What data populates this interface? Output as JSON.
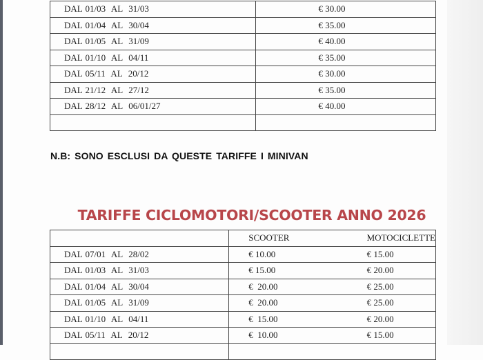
{
  "car_rates": {
    "rows": [
      {
        "period": "DAL 01/03  AL  31/03",
        "price": "€ 30.00"
      },
      {
        "period": "DAL 01/04  AL  30/04",
        "price": "€ 35.00"
      },
      {
        "period": "DAL 01/05  AL  31/09",
        "price": "€ 40.00"
      },
      {
        "period": "DAL 01/10  AL  04/11",
        "price": "€ 35.00"
      },
      {
        "period": "DAL 05/11  AL  20/12",
        "price": "€ 30.00"
      },
      {
        "period": "DAL 21/12  AL  27/12",
        "price": "€ 35.00"
      },
      {
        "period": "DAL 28/12  AL  06/01/27",
        "price": "€ 40.00"
      },
      {
        "period": "",
        "price": ""
      }
    ]
  },
  "note": "N.B:  SONO ESCLUSI DA QUESTE TARIFFE  I  MINIVAN",
  "scooter_rates": {
    "title": "TARIFFE CICLOMOTORI/SCOOTER ANNO 2026",
    "headers": [
      "",
      "SCOOTER",
      "MOTOCICLETTE"
    ],
    "rows": [
      {
        "period": "DAL 07/01  AL  28/02",
        "scooter": "€ 10.00",
        "moto": "€ 15.00"
      },
      {
        "period": "DAL 01/03  AL  31/03",
        "scooter": "€ 15.00",
        "moto": "€ 20.00"
      },
      {
        "period": "DAL 01/04  AL  30/04",
        "scooter": "€  20.00",
        "moto": "€ 25.00"
      },
      {
        "period": "DAL 01/05  AL  31/09",
        "scooter": "€  20.00",
        "moto": "€ 25.00"
      },
      {
        "period": "DAL 01/10  AL  04/11",
        "scooter": "€  15.00",
        "moto": "€ 20.00"
      },
      {
        "period": "DAL 05/11  AL  20/12",
        "scooter": "€  10.00",
        "moto": "€ 15.00"
      },
      {
        "period": "",
        "scooter": "",
        "moto": ""
      }
    ]
  },
  "colors": {
    "title": "#b8464a"
  }
}
